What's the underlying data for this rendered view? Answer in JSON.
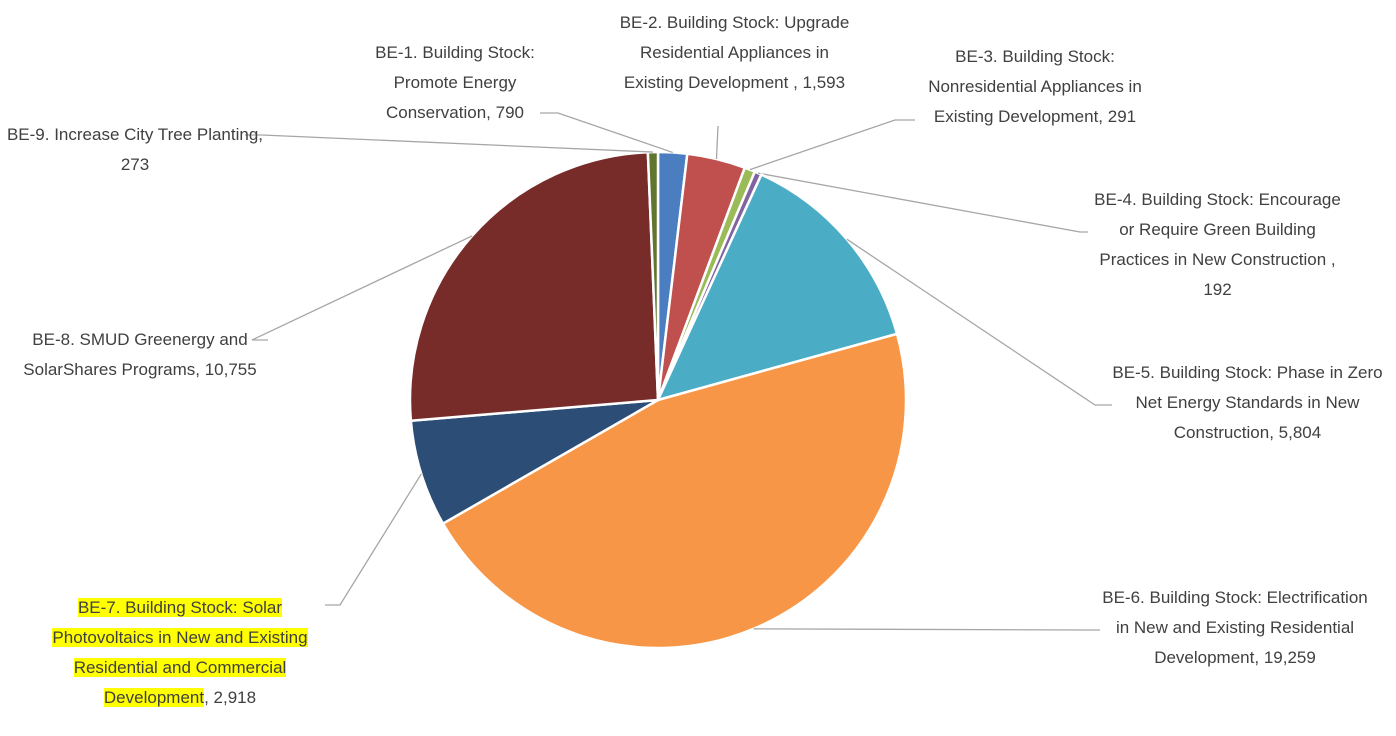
{
  "chart_data": {
    "type": "pie",
    "categories": [
      "BE-1. Building Stock: Promote Energy Conservation",
      "BE-2. Building Stock: Upgrade Residential Appliances in Existing Development ",
      "BE-3. Building Stock: Nonresidential Appliances in Existing Development",
      "BE-4. Building Stock: Encourage or Require Green Building Practices in New Construction ",
      "BE-5. Building Stock: Phase in Zero Net Energy Standards in New Construction",
      "BE-6. Building Stock: Electrification in New and Existing Residential Development",
      "BE-7. Building Stock: Solar Photovoltaics in New and Existing Residential and Commercial Development",
      "BE-8. SMUD Greenergy and SolarShares Programs",
      "BE-9. Increase City Tree Planting"
    ],
    "values": [
      790,
      1593,
      291,
      192,
      5804,
      19259,
      2918,
      10755,
      273
    ],
    "value_labels": [
      "790",
      "1,593",
      "291",
      "192",
      "5,804",
      "19,259",
      "2,918",
      "10,755",
      "273"
    ],
    "label_separator": ",  ",
    "colors": [
      "#4a7ec0",
      "#c0504d",
      "#9bbb59",
      "#8064a2",
      "#4bacc6",
      "#f79646",
      "#2c4d75",
      "#772c2a",
      "#5f7530"
    ]
  }
}
